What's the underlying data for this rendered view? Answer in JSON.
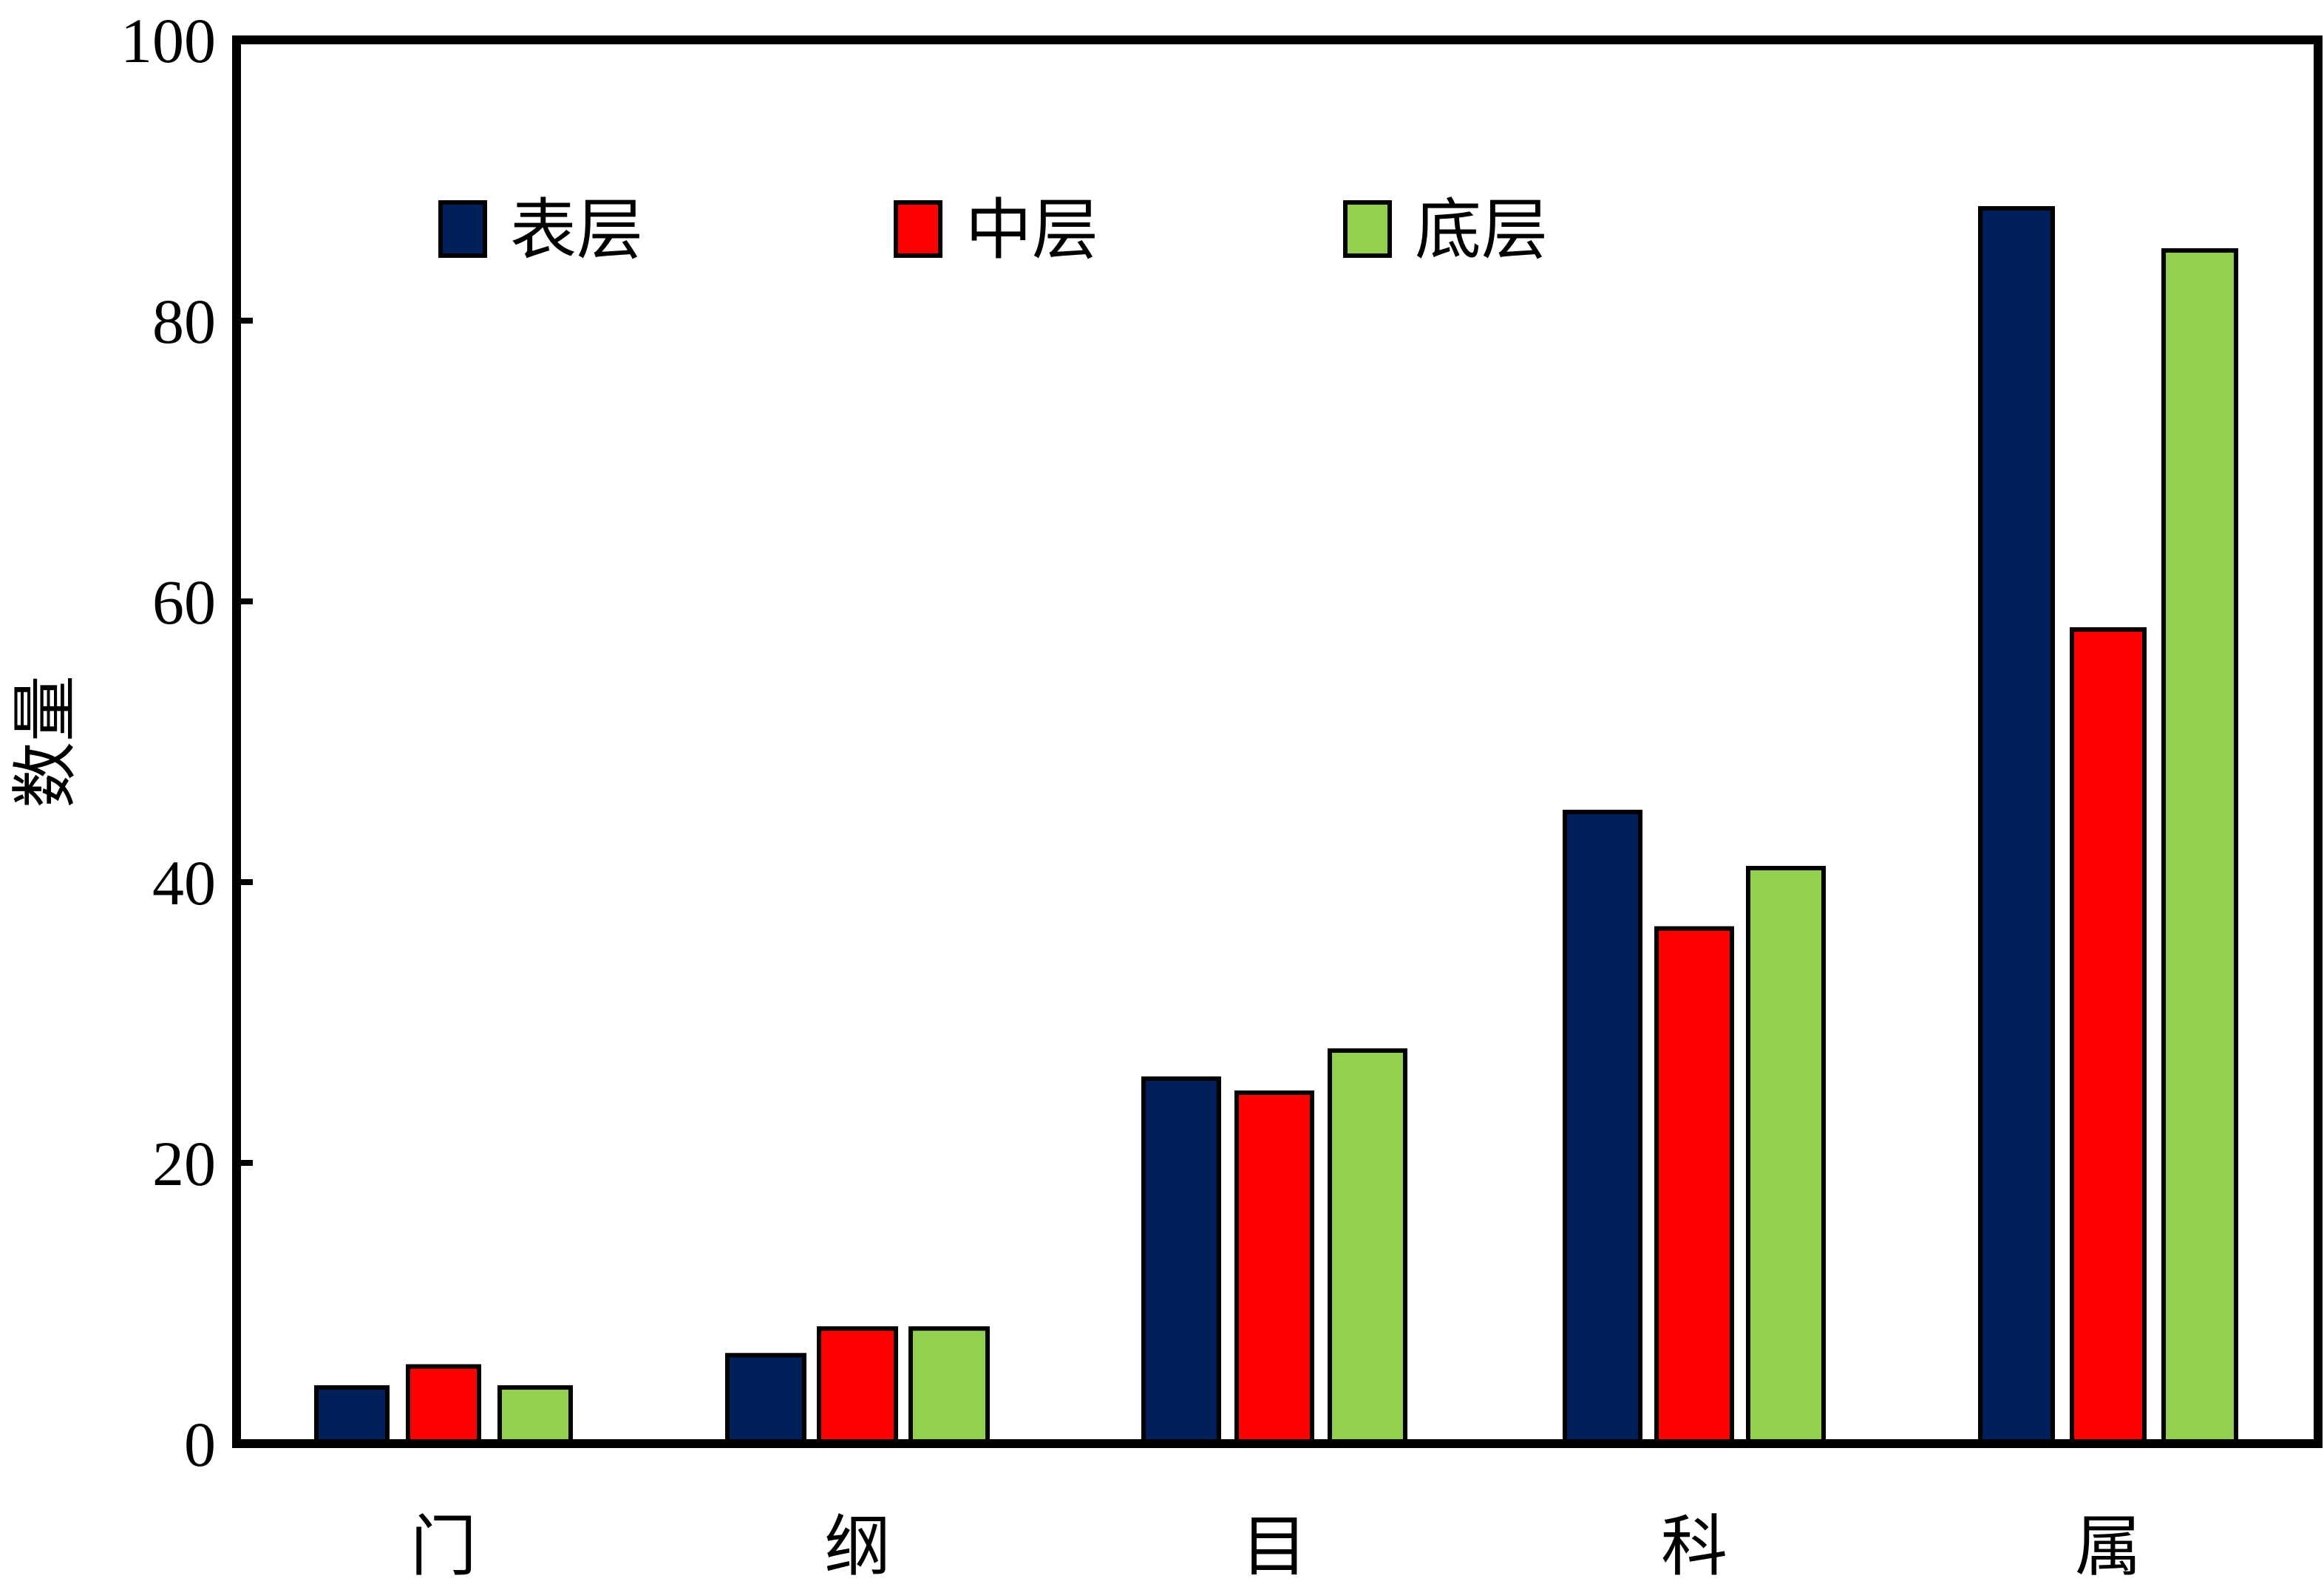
{
  "chart_data": {
    "type": "bar",
    "title": "",
    "xlabel": "",
    "ylabel": "数量",
    "categories": [
      "门",
      "纲",
      "目",
      "科",
      "属"
    ],
    "series": [
      {
        "name": "表层",
        "color": "#00205b",
        "values": [
          4,
          6.3,
          26,
          45,
          88
        ]
      },
      {
        "name": "中层",
        "color": "#ff0000",
        "values": [
          5.5,
          8.2,
          25,
          36.7,
          58
        ]
      },
      {
        "name": "底层",
        "color": "#92d050",
        "values": [
          4,
          8.2,
          28,
          41,
          85
        ]
      }
    ],
    "ylim": [
      0,
      100
    ],
    "yticks": [
      0,
      20,
      40,
      60,
      80,
      100
    ],
    "grid": false,
    "legend_position": "top-left-inside"
  }
}
